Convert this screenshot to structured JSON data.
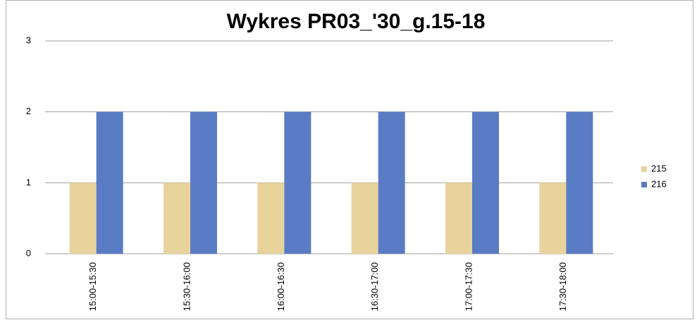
{
  "chart_data": {
    "type": "bar",
    "title": "Wykres PR03_'30_g.15-18",
    "categories": [
      "15:00-15:30",
      "15:30-16:00",
      "16:00-16:30",
      "16:30-17:00",
      "17:00-17:30",
      "17:30-18:00"
    ],
    "series": [
      {
        "name": "215",
        "color": "#e9d39c",
        "values": [
          1,
          1,
          1,
          1,
          1,
          1
        ]
      },
      {
        "name": "216",
        "color": "#5a7cc4",
        "values": [
          2,
          2,
          2,
          2,
          2,
          2
        ]
      }
    ],
    "ylim": [
      0,
      3
    ],
    "yticks": [
      0,
      1,
      2,
      3
    ],
    "grid": true,
    "legend": "right"
  }
}
